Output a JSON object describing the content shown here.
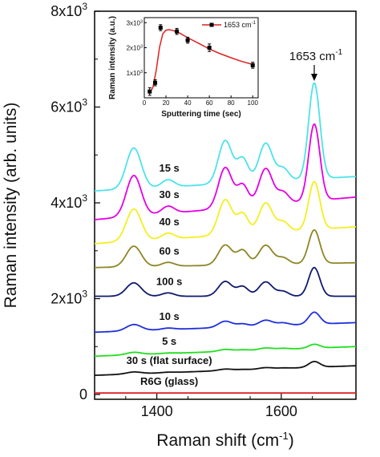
{
  "chart_data": [
    {
      "type": "line",
      "panel": "main",
      "xlabel": "Raman shift (cm",
      "xlabel_sup": "-1",
      "xlabel_end": ")",
      "ylabel": "Raman intensity (arb. units)",
      "xlim": [
        1300,
        1720
      ],
      "ylim": [
        -100,
        8000
      ],
      "x_ticks": [
        {
          "value": 1400,
          "label": "1400"
        },
        {
          "value": 1600,
          "label": "1600"
        }
      ],
      "y_ticks": [
        {
          "value": 0,
          "base": "0",
          "exp": ""
        },
        {
          "value": 2000,
          "base": "2x10",
          "exp": "3"
        },
        {
          "value": 4000,
          "base": "4x10",
          "exp": "3"
        },
        {
          "value": 6000,
          "base": "6x10",
          "exp": "3"
        },
        {
          "value": 8000,
          "base": "8x10",
          "exp": "3"
        }
      ],
      "peak_positions": [
        1363,
        1418,
        1510,
        1538,
        1575,
        1603,
        1653
      ],
      "peak_widths": [
        12,
        10,
        11,
        9,
        11,
        9,
        9
      ],
      "annotation": {
        "text_base": "1653 cm",
        "text_sup": "-1",
        "x": 1653
      },
      "series": [
        {
          "label": "15 s",
          "color": "#4de3ea",
          "base_start": 4250,
          "base_end": 4550,
          "peaks": [
            850,
            150,
            900,
            500,
            800,
            250,
            2000
          ]
        },
        {
          "label": "30 s",
          "color": "#e400e6",
          "base_start": 3650,
          "base_end": 4120,
          "peaks": [
            850,
            150,
            850,
            450,
            760,
            230,
            1600
          ]
        },
        {
          "label": "40 s",
          "color": "#f3ef1f",
          "base_start": 3150,
          "base_end": 3500,
          "peaks": [
            670,
            120,
            740,
            420,
            620,
            200,
            1000
          ]
        },
        {
          "label": "60 s",
          "color": "#8d8625",
          "base_start": 2650,
          "base_end": 2750,
          "peaks": [
            430,
            80,
            420,
            300,
            400,
            130,
            700
          ]
        },
        {
          "label": "100 s",
          "color": "#101a6c",
          "base_start": 2050,
          "base_end": 2050,
          "peaks": [
            280,
            70,
            310,
            200,
            300,
            100,
            600
          ]
        },
        {
          "label": "10 s",
          "color": "#1f2fdc",
          "base_start": 1300,
          "base_end": 1500,
          "peaks": [
            130,
            30,
            130,
            60,
            120,
            50,
            250
          ]
        },
        {
          "label": "5 s",
          "color": "#1fdf1f",
          "base_start": 800,
          "base_end": 1000,
          "peaks": [
            50,
            10,
            40,
            20,
            40,
            20,
            80
          ]
        },
        {
          "label": "30 s (flat surface)",
          "color": "#111111",
          "base_start": 400,
          "base_end": 600,
          "peaks": [
            40,
            10,
            30,
            10,
            30,
            10,
            120
          ]
        },
        {
          "label": "R6G (glass)",
          "color": "#e02020",
          "base_start": 30,
          "base_end": 30,
          "peaks": [
            0,
            0,
            0,
            0,
            0,
            0,
            0
          ]
        }
      ]
    },
    {
      "type": "line",
      "panel": "inset",
      "xlabel": "Sputtering time (sec)",
      "ylabel": "Raman intensity (a.u.)",
      "xlim": [
        0,
        105
      ],
      "ylim": [
        0,
        3200
      ],
      "x_ticks": [
        0,
        20,
        40,
        60,
        80,
        100
      ],
      "y_ticks": [
        {
          "value": 1000,
          "base": "1x10",
          "exp": "3"
        },
        {
          "value": 2000,
          "base": "2x10",
          "exp": "3"
        },
        {
          "value": 3000,
          "base": "3x10",
          "exp": "3"
        }
      ],
      "series": [
        {
          "name_base": "1653 cm",
          "name_sup": "-1",
          "color": "#e02020",
          "x": [
            5,
            10,
            15,
            30,
            40,
            60,
            100
          ],
          "y": [
            250,
            600,
            2800,
            2650,
            2300,
            2000,
            1300
          ],
          "err": [
            150,
            120,
            120,
            120,
            120,
            150,
            120
          ],
          "fit_x": [
            5,
            8,
            11,
            14,
            17,
            20,
            23,
            27,
            32,
            40,
            50,
            60,
            70,
            80,
            90,
            100
          ],
          "fit_y": [
            200,
            420,
            1100,
            2000,
            2550,
            2700,
            2720,
            2680,
            2600,
            2400,
            2180,
            1950,
            1760,
            1600,
            1450,
            1330
          ]
        }
      ]
    }
  ]
}
